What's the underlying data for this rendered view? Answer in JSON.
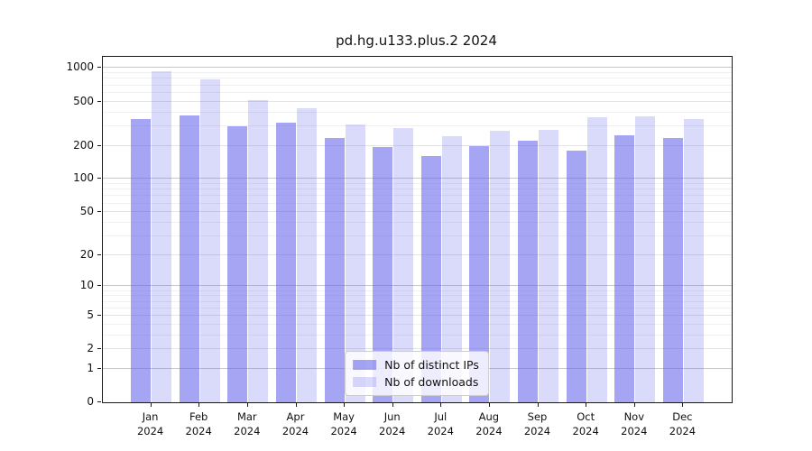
{
  "chart_data": {
    "type": "bar",
    "title": "pd.hg.u133.plus.2 2024",
    "x_year": "2024",
    "categories": [
      "Jan",
      "Feb",
      "Mar",
      "Apr",
      "May",
      "Jun",
      "Jul",
      "Aug",
      "Sep",
      "Oct",
      "Nov",
      "Dec"
    ],
    "series": [
      {
        "name": "Nb of distinct IPs",
        "color": "rgba(100,100,235,0.58)",
        "values": [
          350,
          374,
          302,
          322,
          235,
          195,
          161,
          197,
          224,
          180,
          250,
          236
        ]
      },
      {
        "name": "Nb of downloads",
        "color": "rgba(100,100,235,0.24)",
        "values": [
          940,
          796,
          513,
          436,
          312,
          288,
          242,
          274,
          279,
          358,
          367,
          350
        ]
      }
    ],
    "yscale": "log10(1+v)",
    "yticks": [
      0,
      1,
      2,
      5,
      10,
      20,
      50,
      100,
      200,
      500,
      1000
    ],
    "ylim": [
      0,
      1260
    ],
    "xlabel": "",
    "ylabel": "",
    "grid": "horizontal log gridlines, major and minor",
    "legend_position": "lower center",
    "colors": {
      "decade_gridline": "#c8c8c8",
      "labeled_gridline": "#e3e3e3",
      "minor_gridline": "#f0f0f0",
      "spine": "#1a1a1a"
    }
  }
}
